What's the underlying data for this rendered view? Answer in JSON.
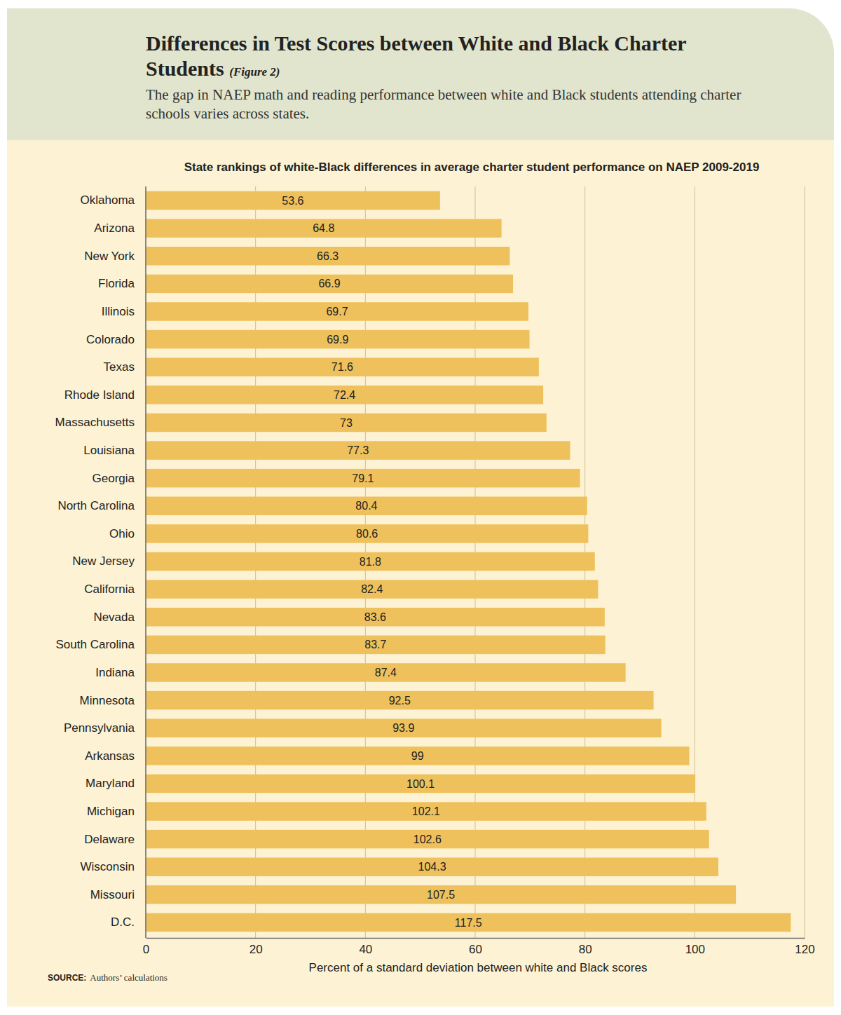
{
  "chart_data": {
    "type": "bar",
    "orientation": "horizontal",
    "title": "Differences in Test Scores between White and Black Charter Students",
    "figure_label": "(Figure 2)",
    "subtitle": "The gap in NAEP math and reading performance between white and Black students attending charter schools varies across states.",
    "chart_title": "State rankings of white-Black differences in average charter student performance on NAEP 2009-2019",
    "x_label": "Percent of a standard deviation between white and Black scores",
    "source_label": "SOURCE:",
    "source": "Authors’ calculations",
    "categories": [
      "Oklahoma",
      "Arizona",
      "New York",
      "Florida",
      "Illinois",
      "Colorado",
      "Texas",
      "Rhode Island",
      "Massachusetts",
      "Louisiana",
      "Georgia",
      "North Carolina",
      "Ohio",
      "New Jersey",
      "California",
      "Nevada",
      "South Carolina",
      "Indiana",
      "Minnesota",
      "Pennsylvania",
      "Arkansas",
      "Maryland",
      "Michigan",
      "Delaware",
      "Wisconsin",
      "Missouri",
      "D.C."
    ],
    "values": [
      53.6,
      64.8,
      66.3,
      66.9,
      69.7,
      69.9,
      71.6,
      72.4,
      73,
      77.3,
      79.1,
      80.4,
      80.6,
      81.8,
      82.4,
      83.6,
      83.7,
      87.4,
      92.5,
      93.9,
      99,
      100.1,
      102.1,
      102.6,
      104.3,
      107.5,
      117.5
    ],
    "color": "#efc15c",
    "xlim": [
      0,
      120
    ],
    "xticks": [
      0,
      20,
      40,
      60,
      80,
      100,
      120
    ],
    "grid": true,
    "data_labels": true
  }
}
